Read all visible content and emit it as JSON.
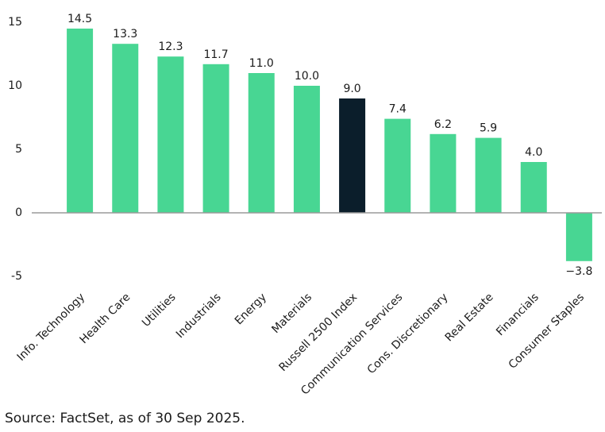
{
  "chart_data": {
    "type": "bar",
    "categories": [
      "Info. Technology",
      "Health Care",
      "Utilities",
      "Industrials",
      "Energy",
      "Materials",
      "Russell 2500 Index",
      "Communication Services",
      "Cons. Discretionary",
      "Real Estate",
      "Financials",
      "Consumer Staples"
    ],
    "values": [
      14.5,
      13.3,
      12.3,
      11.7,
      11.0,
      10.0,
      9.0,
      7.4,
      6.2,
      5.9,
      4.0,
      -3.8
    ],
    "value_labels": [
      "14.5",
      "13.3",
      "12.3",
      "11.7",
      "11.0",
      "10.0",
      "9.0",
      "7.4",
      "6.2",
      "5.9",
      "4.0",
      "−3.8"
    ],
    "colors": [
      "#48d693",
      "#48d693",
      "#48d693",
      "#48d693",
      "#48d693",
      "#48d693",
      "#0b1e2b",
      "#48d693",
      "#48d693",
      "#48d693",
      "#48d693",
      "#48d693"
    ],
    "ylim": [
      -5,
      15
    ],
    "yticks": [
      -5,
      0,
      5,
      10,
      15
    ],
    "grid": false,
    "source": "Source: FactSet, as of 30 Sep 2025."
  }
}
